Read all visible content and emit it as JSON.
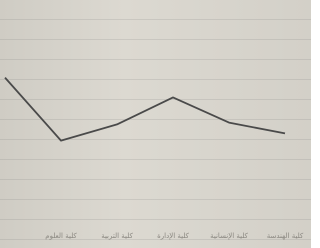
{
  "chart_data": {
    "type": "line",
    "categories": [
      null,
      "كلية العلوم",
      "كلية التربية",
      "كلية الإدارة",
      "كلية الإنسانية",
      "كلية الهندسة"
    ],
    "series": [
      {
        "name": null,
        "color": "#4a4a4a",
        "values": [
          6.8,
          3.3,
          4.2,
          5.7,
          4.3,
          3.7
        ]
      }
    ],
    "ylim": [
      0,
      10
    ]
  }
}
